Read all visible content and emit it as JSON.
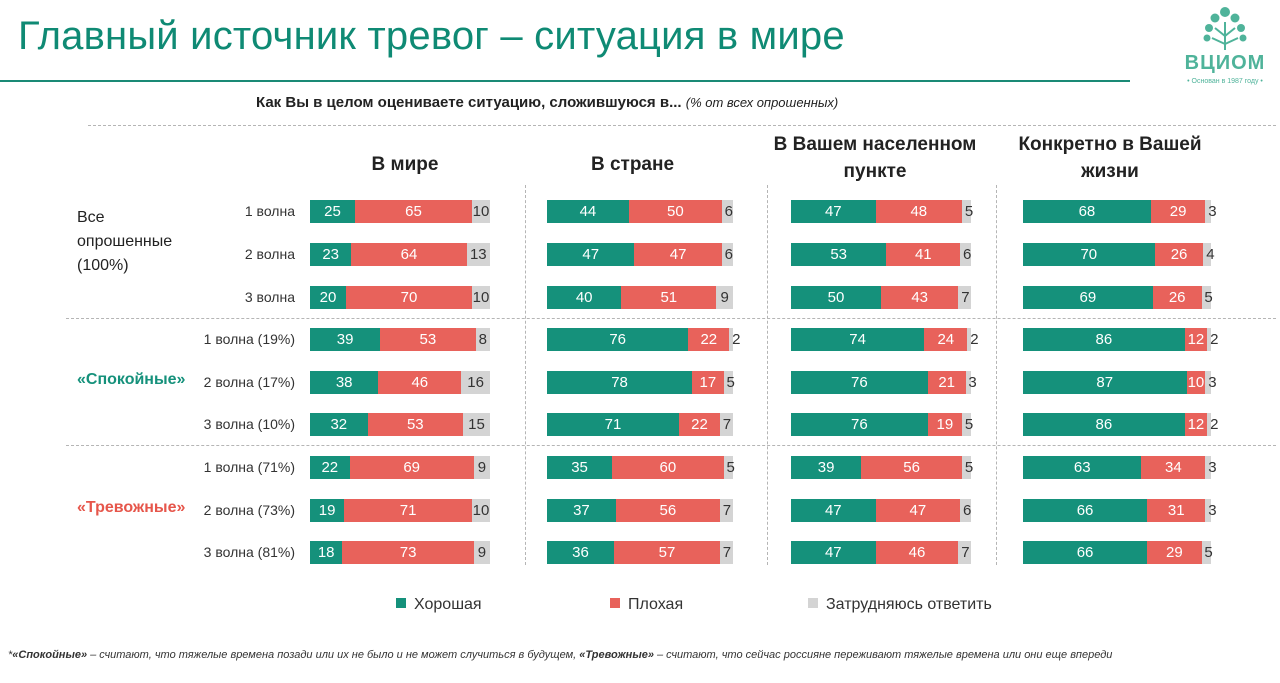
{
  "header": {
    "title": "Главный источник тревог – ситуация в мире",
    "question": "Как Вы в целом оцениваете ситуацию, сложившуюся в...",
    "question_note": "(% от всех опрошенных)"
  },
  "logo": {
    "text": "ВЦИОМ",
    "subtitle": "• Основан в 1987 году •"
  },
  "colors": {
    "good": "#15917b",
    "bad": "#e8625b",
    "hard": "#d4d4d4",
    "accent": "#0f8a74"
  },
  "chart_data": {
    "type": "bar",
    "stacked": true,
    "orientation": "horizontal",
    "panels": [
      "В мире",
      "В стране",
      "В Вашем населенном пункте",
      "Конкретно в Вашей жизни"
    ],
    "legend": [
      "Хорошая",
      "Плохая",
      "Затрудняюсь ответить"
    ],
    "groups": [
      {
        "label": "Все опрошенные (100%)",
        "style": "plain",
        "rows": [
          {
            "label": "1 волна",
            "values": [
              [
                25,
                65,
                10
              ],
              [
                44,
                50,
                6
              ],
              [
                47,
                48,
                5
              ],
              [
                68,
                29,
                3
              ]
            ]
          },
          {
            "label": "2 волна",
            "values": [
              [
                23,
                64,
                13
              ],
              [
                47,
                47,
                6
              ],
              [
                53,
                41,
                6
              ],
              [
                70,
                26,
                4
              ]
            ]
          },
          {
            "label": "3 волна",
            "values": [
              [
                20,
                70,
                10
              ],
              [
                40,
                51,
                9
              ],
              [
                50,
                43,
                7
              ],
              [
                69,
                26,
                5
              ]
            ]
          }
        ]
      },
      {
        "label": "«Спокойные»",
        "style": "green",
        "rows": [
          {
            "label": "1 волна (19%)",
            "values": [
              [
                39,
                53,
                8
              ],
              [
                76,
                22,
                2
              ],
              [
                74,
                24,
                2
              ],
              [
                86,
                12,
                2
              ]
            ]
          },
          {
            "label": "2 волна (17%)",
            "values": [
              [
                38,
                46,
                16
              ],
              [
                78,
                17,
                5
              ],
              [
                76,
                21,
                3
              ],
              [
                87,
                10,
                3
              ]
            ]
          },
          {
            "label": "3 волна (10%)",
            "values": [
              [
                32,
                53,
                15
              ],
              [
                71,
                22,
                7
              ],
              [
                76,
                19,
                5
              ],
              [
                86,
                12,
                2
              ]
            ]
          }
        ]
      },
      {
        "label": "«Тревожные»",
        "style": "red",
        "rows": [
          {
            "label": "1 волна (71%)",
            "values": [
              [
                22,
                69,
                9
              ],
              [
                35,
                60,
                5
              ],
              [
                39,
                56,
                5
              ],
              [
                63,
                34,
                3
              ]
            ]
          },
          {
            "label": "2 волна (73%)",
            "values": [
              [
                19,
                71,
                10
              ],
              [
                37,
                56,
                7
              ],
              [
                47,
                47,
                6
              ],
              [
                66,
                31,
                3
              ]
            ]
          },
          {
            "label": "3 волна (81%)",
            "values": [
              [
                18,
                73,
                9
              ],
              [
                36,
                57,
                7
              ],
              [
                47,
                46,
                7
              ],
              [
                66,
                29,
                5
              ]
            ]
          }
        ]
      }
    ]
  },
  "footnote": {
    "prefix": "*",
    "term1": "«Спокойные»",
    "text1": " – считают, что тяжелые времена позади или их не было и не может случиться в будущем, ",
    "term2": "«Тревожные»",
    "text2": " – считают, что сейчас россияне переживают тяжелые времена или они еще впереди"
  }
}
